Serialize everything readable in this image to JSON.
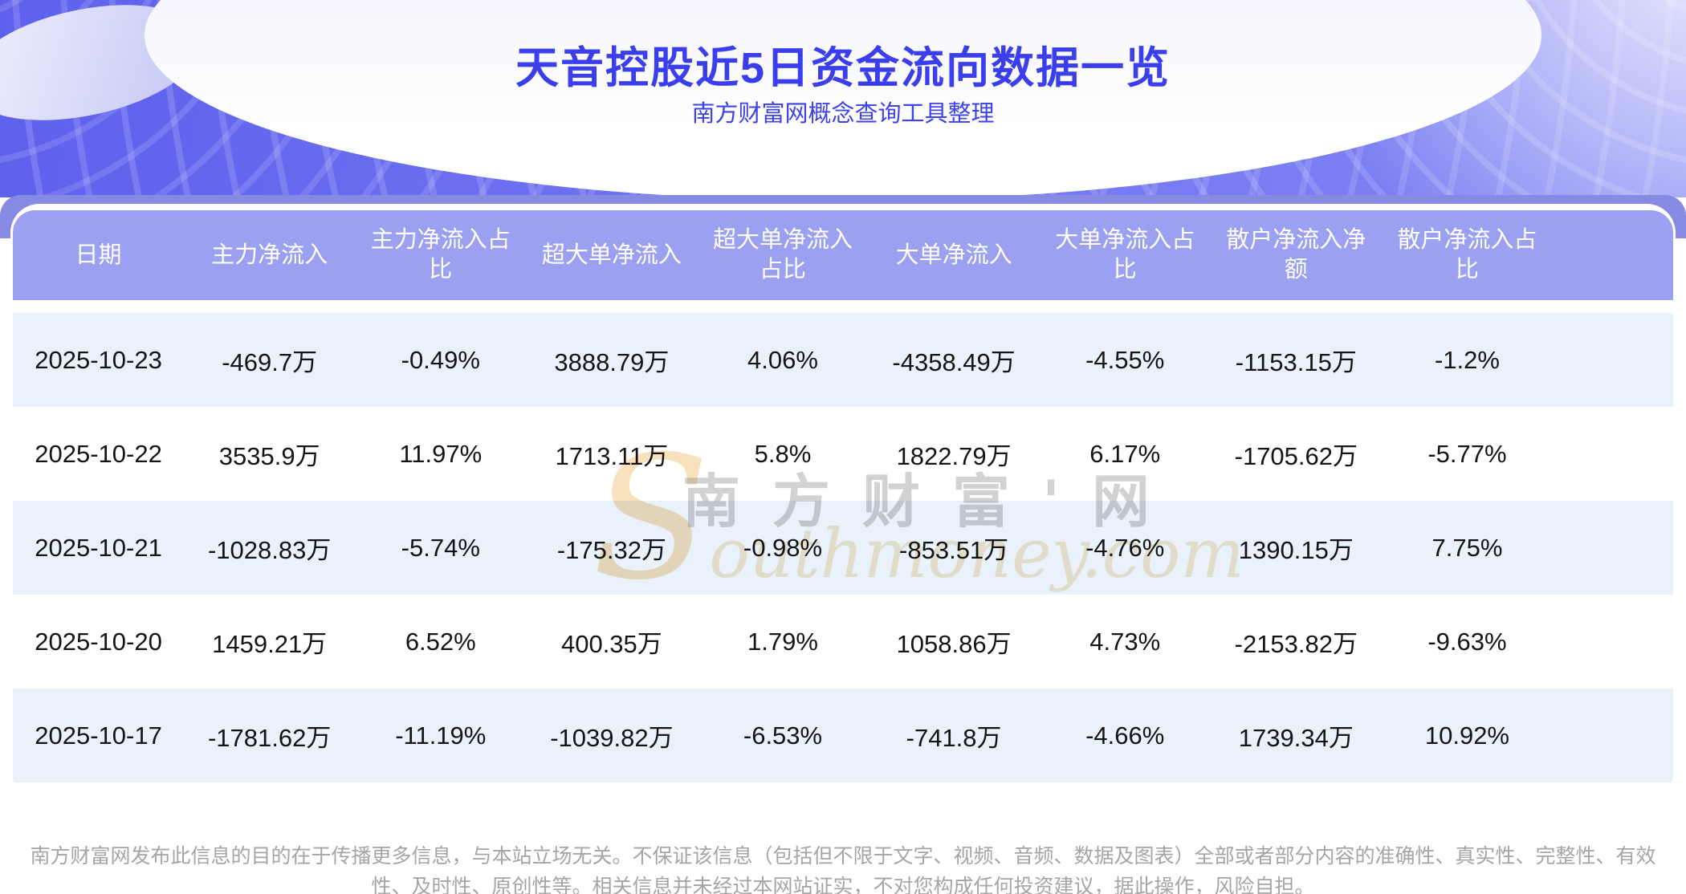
{
  "banner": {
    "title": "天音控股近5日资金流向数据一览",
    "subtitle": "南方财富网概念查询工具整理"
  },
  "chart_data": {
    "type": "table",
    "title": "天音控股近5日资金流向数据一览",
    "columns": [
      "日期",
      "主力净流入",
      "主力净流入占比",
      "超大单净流入",
      "超大单净流入占比",
      "大单净流入",
      "大单净流入占比",
      "散户净流入净额",
      "散户净流入占比"
    ],
    "rows": [
      [
        "2025-10-23",
        "-469.7万",
        "-0.49%",
        "3888.79万",
        "4.06%",
        "-4358.49万",
        "-4.55%",
        "-1153.15万",
        "-1.2%"
      ],
      [
        "2025-10-22",
        "3535.9万",
        "11.97%",
        "1713.11万",
        "5.8%",
        "1822.79万",
        "6.17%",
        "-1705.62万",
        "-5.77%"
      ],
      [
        "2025-10-21",
        "-1028.83万",
        "-5.74%",
        "-175.32万",
        "-0.98%",
        "-853.51万",
        "-4.76%",
        "1390.15万",
        "7.75%"
      ],
      [
        "2025-10-20",
        "1459.21万",
        "6.52%",
        "400.35万",
        "1.79%",
        "1058.86万",
        "4.73%",
        "-2153.82万",
        "-9.63%"
      ],
      [
        "2025-10-17",
        "-1781.62万",
        "-11.19%",
        "-1039.82万",
        "-6.53%",
        "-741.8万",
        "-4.66%",
        "1739.34万",
        "10.92%"
      ]
    ]
  },
  "watermark": {
    "cn": "南方财富'网",
    "en": "Southmoney.com"
  },
  "footer": {
    "disclaimer": "南方财富网发布此信息的目的在于传播更多信息，与本站立场无关。不保证该信息（包括但不限于文字、视频、音频、数据及图表）全部或者部分内容的准确性、真实性、完整性、有效性、及时性、原创性等。相关信息并未经过本网站证实，不对您构成任何投资建议，据此操作，风险自担。"
  },
  "colors": {
    "banner_purple": "#6f73f1",
    "band_purple": "#878ae2",
    "header_purple": "#9ba0f0",
    "stripe_blue": "#e9f1fa",
    "title_blue": "#3a3eec",
    "watermark_orange": "#f3cd92",
    "footer_grey": "#a5a5a5"
  }
}
